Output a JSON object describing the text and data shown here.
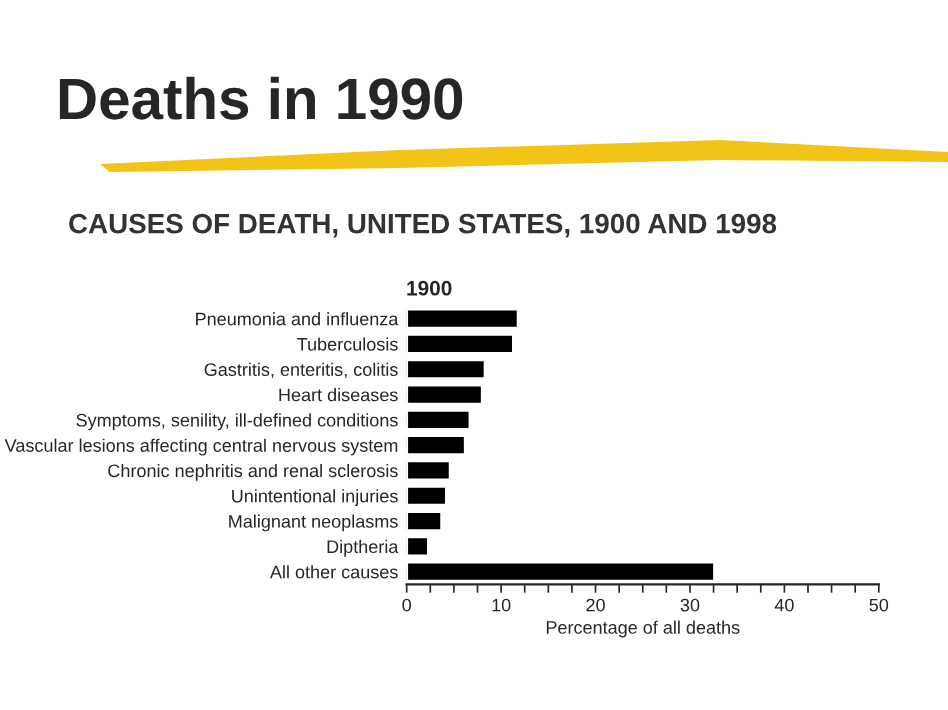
{
  "chart_data": {
    "type": "bar",
    "orientation": "horizontal",
    "title": "Deaths in 1990",
    "subtitle": "CAUSES OF DEATH, UNITED STATES, 1900 AND 1998",
    "annotations": [
      "1900"
    ],
    "categories": [
      "Pneumonia and influenza",
      "Tuberculosis",
      "Gastritis, enteritis, colitis",
      "Heart diseases",
      "Symptoms, senility, ill-defined conditions",
      "Vascular lesions affecting central nervous system",
      "Chronic nephritis and renal sclerosis",
      "Unintentional injuries",
      "Malignant neoplasms",
      "Diptheria",
      "All other causes"
    ],
    "values": [
      11.8,
      11.3,
      8.3,
      8.0,
      6.7,
      6.2,
      4.6,
      4.2,
      3.7,
      2.3,
      32.6
    ],
    "color": "#000000",
    "xlabel": "Percentage of all deaths",
    "xlim": [
      0,
      50
    ],
    "xticks": [
      0,
      {
        "value": 2.5,
        "label": null
      },
      {
        "value": 5,
        "label": null
      },
      {
        "value": 7.5,
        "label": null
      },
      10,
      {
        "value": 12.5,
        "label": null
      },
      {
        "value": 15,
        "label": null
      },
      {
        "value": 17.5,
        "label": null
      },
      20,
      {
        "value": 22.5,
        "label": null
      },
      {
        "value": 25,
        "label": null
      },
      {
        "value": 27.5,
        "label": null
      },
      30,
      {
        "value": 32.5,
        "label": null
      },
      {
        "value": 35,
        "label": null
      },
      {
        "value": 37.5,
        "label": null
      },
      40,
      {
        "value": 42.5,
        "label": null
      },
      {
        "value": 45,
        "label": null
      },
      {
        "value": 47.5,
        "label": null
      },
      50
    ],
    "grid": false,
    "legend": false
  }
}
